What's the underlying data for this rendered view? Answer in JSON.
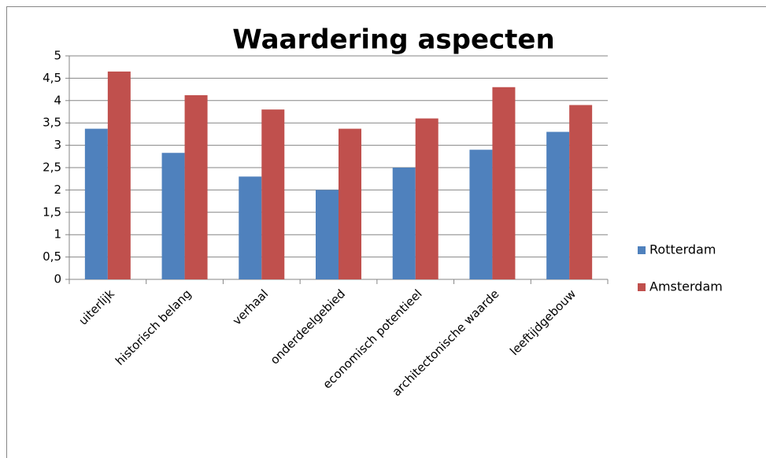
{
  "chart_data": {
    "type": "bar",
    "title": "Waardering aspecten",
    "categories": [
      "uiterlijk",
      "historisch belang",
      "verhaal",
      "onderdeelgebied",
      "economisch potentieel",
      "architectonische waarde",
      "leeftijdgebouw"
    ],
    "series": [
      {
        "name": "Rotterdam",
        "color": "#4f81bd",
        "values": [
          3.37,
          2.83,
          2.3,
          2.0,
          2.5,
          2.9,
          3.3
        ]
      },
      {
        "name": "Amsterdam",
        "color": "#c0504d",
        "values": [
          4.65,
          4.12,
          3.8,
          3.37,
          3.6,
          4.3,
          3.9
        ]
      }
    ],
    "ylim": [
      0,
      5
    ],
    "yticks": [
      0,
      {
        "value": 0.5,
        "label": "0,5"
      },
      1,
      {
        "value": 1.5,
        "label": "1,5"
      },
      2,
      {
        "value": 2.5,
        "label": "2,5"
      },
      3,
      {
        "value": 3.5,
        "label": "3,5"
      },
      4,
      {
        "value": 4.5,
        "label": "4,5"
      },
      5
    ],
    "grid": true,
    "legend": "right"
  }
}
